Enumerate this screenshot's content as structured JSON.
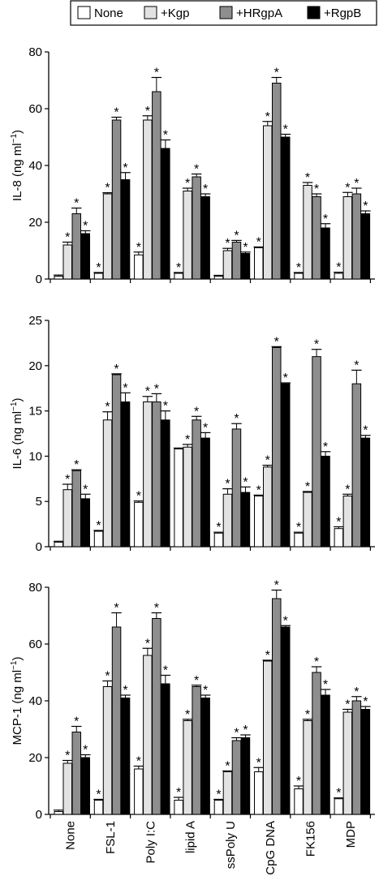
{
  "legend": {
    "placement": "top-right",
    "items": [
      {
        "label": "None",
        "color": "#ffffff"
      },
      {
        "label": "+Kgp",
        "color": "#e2e2e2"
      },
      {
        "label": "+HRgpA",
        "color": "#8e8e8e"
      },
      {
        "label": "+RgpB",
        "color": "#000000"
      }
    ]
  },
  "categories": [
    "None",
    "FSL-1",
    "Poly I:C",
    "lipid A",
    "ssPoly U",
    "CpG DNA",
    "FK156",
    "MDP"
  ],
  "chart_data": [
    {
      "type": "bar",
      "ylabel_main": "IL-8 (ng ml",
      "ylabel_sup": "−1",
      "ylabel_close": ")",
      "ylim": [
        0,
        80
      ],
      "yticks": [
        0,
        20,
        40,
        60,
        80
      ],
      "grid": false,
      "categories": [
        "None",
        "FSL-1",
        "Poly I:C",
        "lipid A",
        "ssPoly U",
        "CpG DNA",
        "FK156",
        "MDP"
      ],
      "series": [
        {
          "name": "None",
          "values": [
            1,
            2,
            8.5,
            2,
            1,
            11,
            2,
            2
          ],
          "errors": [
            0.4,
            0.3,
            1,
            0.3,
            0.3,
            0.3,
            0.3,
            0.4
          ],
          "sig": [
            false,
            true,
            true,
            true,
            false,
            true,
            true,
            true
          ]
        },
        {
          "name": "+Kgp",
          "values": [
            12,
            30,
            56,
            31,
            10,
            54,
            33,
            29
          ],
          "errors": [
            1,
            0.4,
            1.5,
            1,
            0.8,
            1.5,
            1,
            1.5
          ],
          "sig": [
            true,
            true,
            true,
            true,
            true,
            true,
            true,
            true
          ]
        },
        {
          "name": "+HRgpA",
          "values": [
            23,
            56,
            66,
            36,
            13,
            69,
            29,
            30
          ],
          "errors": [
            2,
            1,
            5,
            1,
            0.6,
            2,
            1,
            2
          ],
          "sig": [
            true,
            true,
            true,
            true,
            true,
            true,
            true,
            true
          ]
        },
        {
          "name": "+RgpB",
          "values": [
            16,
            35,
            46,
            29,
            9,
            50,
            18,
            23
          ],
          "errors": [
            1,
            2.5,
            3,
            1,
            0.5,
            1,
            1.5,
            1
          ],
          "sig": [
            true,
            true,
            true,
            true,
            true,
            true,
            true,
            true
          ]
        }
      ]
    },
    {
      "type": "bar",
      "ylabel_main": "IL-6 (ng ml",
      "ylabel_sup": "−1",
      "ylabel_close": ")",
      "ylim": [
        0,
        25
      ],
      "yticks": [
        0,
        5,
        10,
        15,
        20,
        25
      ],
      "grid": false,
      "categories": [
        "None",
        "FSL-1",
        "Poly I:C",
        "lipid A",
        "ssPoly U",
        "CpG DNA",
        "FK156",
        "MDP"
      ],
      "series": [
        {
          "name": "None",
          "values": [
            0.5,
            1.7,
            4.9,
            10.8,
            1.5,
            5.6,
            1.5,
            2
          ],
          "errors": [
            0.1,
            0.1,
            0.15,
            0.1,
            0.1,
            0.1,
            0.1,
            0.2
          ],
          "sig": [
            false,
            true,
            true,
            false,
            true,
            true,
            true,
            true
          ]
        },
        {
          "name": "+Kgp",
          "values": [
            6.3,
            14,
            16,
            11,
            5.8,
            8.8,
            6,
            5.6
          ],
          "errors": [
            0.6,
            0.9,
            0.6,
            0.3,
            0.6,
            0.2,
            0.1,
            0.2
          ],
          "sig": [
            true,
            true,
            true,
            true,
            true,
            true,
            true,
            true
          ]
        },
        {
          "name": "+HRgpA",
          "values": [
            8.4,
            19,
            16,
            14,
            13,
            22,
            21,
            18
          ],
          "errors": [
            0.1,
            0.1,
            0.9,
            0.4,
            0.6,
            0.1,
            0.8,
            1.5
          ],
          "sig": [
            true,
            true,
            true,
            true,
            true,
            true,
            true,
            true
          ]
        },
        {
          "name": "+RgpB",
          "values": [
            5.3,
            16,
            14,
            12,
            6,
            18,
            10,
            12
          ],
          "errors": [
            0.5,
            1,
            1,
            0.6,
            0.6,
            0.1,
            0.5,
            0.3
          ],
          "sig": [
            true,
            true,
            true,
            true,
            true,
            true,
            true,
            true
          ]
        }
      ]
    },
    {
      "type": "bar",
      "ylabel_main": "MCP-1 (ng ml",
      "ylabel_sup": "−1",
      "ylabel_close": ")",
      "ylim": [
        0,
        80
      ],
      "yticks": [
        0,
        20,
        40,
        60,
        80
      ],
      "grid": false,
      "categories": [
        "None",
        "FSL-1",
        "Poly I:C",
        "lipid A",
        "ssPoly U",
        "CpG DNA",
        "FK156",
        "MDP"
      ],
      "series": [
        {
          "name": "None",
          "values": [
            1,
            5,
            16,
            5,
            5,
            15,
            9,
            5.5
          ],
          "errors": [
            0.5,
            0.3,
            1,
            1,
            0.3,
            1.5,
            1,
            0.3
          ],
          "sig": [
            false,
            true,
            true,
            true,
            true,
            true,
            true,
            true
          ]
        },
        {
          "name": "+Kgp",
          "values": [
            18,
            45,
            56,
            33,
            15,
            54,
            33,
            36
          ],
          "errors": [
            1,
            2,
            2.5,
            0.5,
            0.3,
            0.3,
            0.5,
            1
          ],
          "sig": [
            true,
            true,
            true,
            true,
            true,
            true,
            true,
            true
          ]
        },
        {
          "name": "+HRgpA",
          "values": [
            29,
            66,
            69,
            45,
            26,
            76,
            50,
            40
          ],
          "errors": [
            2,
            5,
            2,
            0.5,
            1,
            3,
            2,
            1.5
          ],
          "sig": [
            true,
            true,
            true,
            true,
            true,
            true,
            true,
            true
          ]
        },
        {
          "name": "+RgpB",
          "values": [
            20,
            41,
            46,
            41,
            27,
            66,
            42,
            37
          ],
          "errors": [
            1,
            1,
            3,
            1,
            1,
            0.5,
            2,
            1
          ],
          "sig": [
            true,
            true,
            true,
            true,
            true,
            true,
            true,
            true
          ]
        }
      ]
    }
  ]
}
